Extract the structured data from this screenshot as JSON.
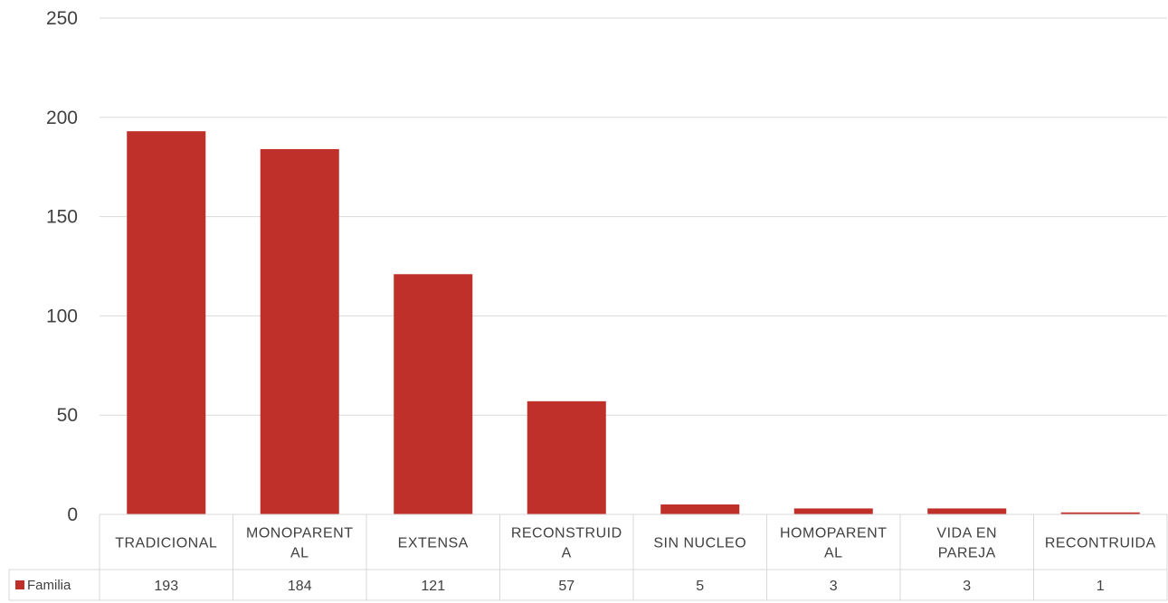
{
  "chart_data": {
    "type": "bar",
    "categories": [
      [
        "TRADICIONAL"
      ],
      [
        "MONOPARENT",
        "AL"
      ],
      [
        "EXTENSA"
      ],
      [
        "RECONSTRUID",
        "A"
      ],
      [
        "SIN NUCLEO"
      ],
      [
        "HOMOPARENT",
        "AL"
      ],
      [
        "VIDA EN",
        "PAREJA"
      ],
      [
        "RECONTRUIDA"
      ]
    ],
    "series": [
      {
        "name": "Familia",
        "values": [
          193,
          184,
          121,
          57,
          5,
          3,
          3,
          1
        ],
        "color": "#C0302A"
      }
    ],
    "y_ticks": [
      "0",
      "50",
      "100",
      "150",
      "200",
      "250"
    ],
    "ylim": [
      0,
      250
    ],
    "grid": true,
    "data_table": true,
    "legend_placement": "data-table-left"
  }
}
